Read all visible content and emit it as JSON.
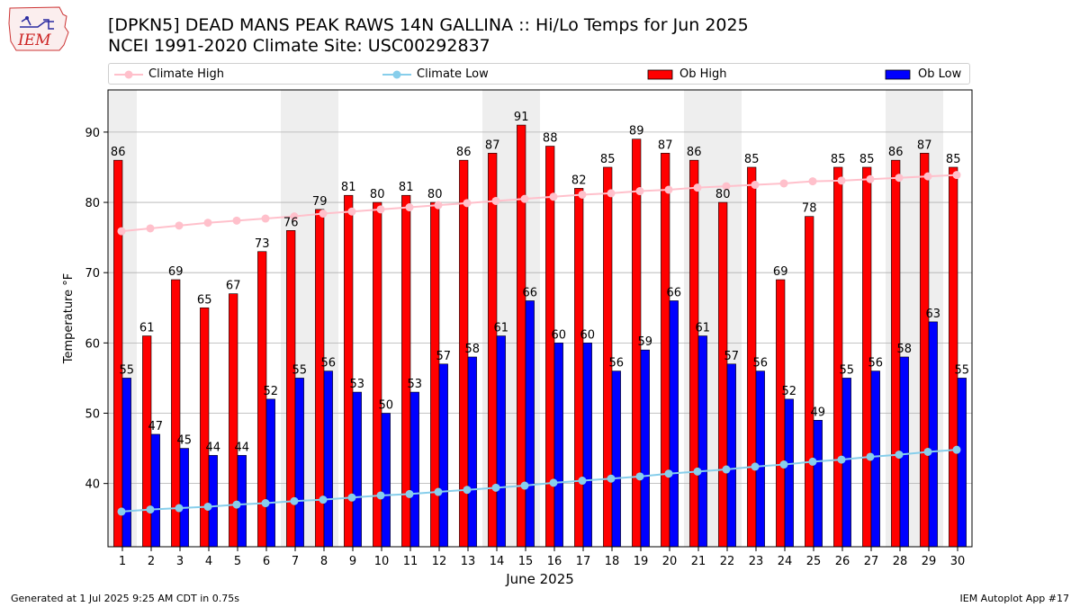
{
  "header": {
    "title_line1": "[DPKN5] DEAD MANS PEAK RAWS 14N GALLINA :: Hi/Lo Temps for Jun 2025",
    "title_line2": "NCEI 1991-2020 Climate Site: USC00292837",
    "logo_text": "IEM"
  },
  "legend": {
    "climate_high": "Climate High",
    "climate_low": "Climate Low",
    "ob_high": "Ob High",
    "ob_low": "Ob Low"
  },
  "colors": {
    "ob_high": "#ff0000",
    "ob_low": "#0000ff",
    "climate_high": "#ffc0cb",
    "climate_low": "#87ceeb",
    "weekend_shade": "#eeeeee",
    "grid": "#b0b0b0"
  },
  "footer": {
    "left": "Generated at 1 Jul 2025 9:25 AM CDT in 0.75s",
    "right": "IEM Autoplot App #17"
  },
  "chart_data": {
    "type": "bar",
    "xlabel": "June 2025",
    "ylabel": "Temperature °F",
    "ylim": [
      31,
      96
    ],
    "yticks": [
      40,
      50,
      60,
      70,
      80,
      90
    ],
    "grid": "horizontal",
    "legend_position": "top",
    "categories": [
      "1",
      "2",
      "3",
      "4",
      "5",
      "6",
      "7",
      "8",
      "9",
      "10",
      "11",
      "12",
      "13",
      "14",
      "15",
      "16",
      "17",
      "18",
      "19",
      "20",
      "21",
      "22",
      "23",
      "24",
      "25",
      "26",
      "27",
      "28",
      "29",
      "30"
    ],
    "shaded_days": [
      1,
      7,
      8,
      14,
      15,
      21,
      22,
      28,
      29
    ],
    "series": [
      {
        "name": "Ob High",
        "kind": "bar",
        "values": [
          86,
          61,
          69,
          65,
          67,
          73,
          76,
          79,
          81,
          80,
          81,
          80,
          86,
          87,
          91,
          88,
          82,
          85,
          89,
          87,
          86,
          80,
          85,
          69,
          78,
          85,
          85,
          86,
          87,
          85
        ]
      },
      {
        "name": "Ob Low",
        "kind": "bar",
        "values": [
          55,
          47,
          45,
          44,
          44,
          52,
          55,
          56,
          53,
          50,
          53,
          57,
          58,
          61,
          66,
          60,
          60,
          56,
          59,
          66,
          61,
          57,
          56,
          52,
          49,
          55,
          56,
          58,
          63,
          55
        ]
      },
      {
        "name": "Climate High",
        "kind": "line",
        "values": [
          75.9,
          76.3,
          76.7,
          77.1,
          77.4,
          77.7,
          78.0,
          78.4,
          78.7,
          79.0,
          79.3,
          79.6,
          79.9,
          80.2,
          80.5,
          80.8,
          81.1,
          81.3,
          81.6,
          81.8,
          82.1,
          82.3,
          82.5,
          82.7,
          83.0,
          83.1,
          83.3,
          83.5,
          83.7,
          83.9
        ]
      },
      {
        "name": "Climate Low",
        "kind": "line",
        "values": [
          36.0,
          36.3,
          36.5,
          36.7,
          37.0,
          37.2,
          37.5,
          37.7,
          38.0,
          38.3,
          38.5,
          38.8,
          39.1,
          39.4,
          39.7,
          40.1,
          40.4,
          40.7,
          41.0,
          41.4,
          41.7,
          42.0,
          42.4,
          42.7,
          43.1,
          43.4,
          43.8,
          44.1,
          44.5,
          44.8
        ]
      }
    ]
  }
}
